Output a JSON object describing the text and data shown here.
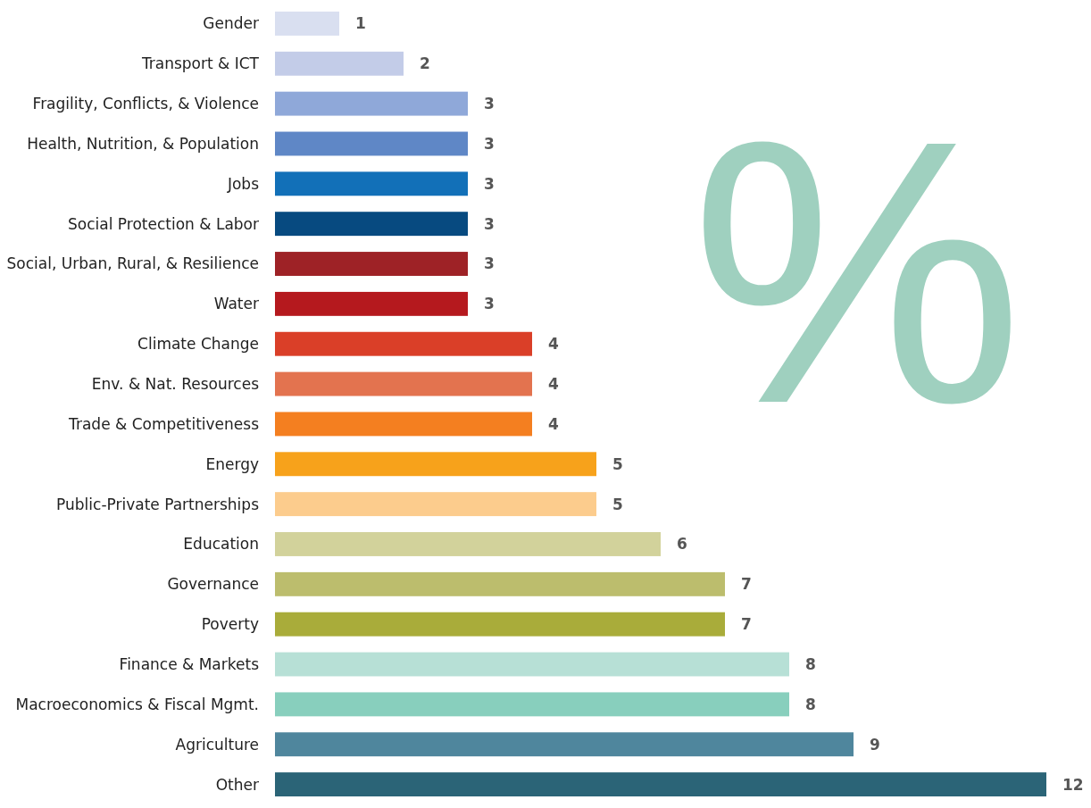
{
  "chart_data": {
    "type": "bar",
    "orientation": "horizontal",
    "data_labels": true,
    "categories": [
      "Gender",
      "Transport & ICT",
      "Fragility, Conflicts, & Violence",
      "Health, Nutrition, & Population",
      "Jobs",
      "Social Protection & Labor",
      "Social, Urban, Rural, & Resilience",
      "Water",
      "Climate Change",
      "Env. & Nat. Resources",
      "Trade & Competitiveness",
      "Energy",
      "Public-Private Partnerships",
      "Education",
      "Governance",
      "Poverty",
      "Finance & Markets",
      "Macroeconomics & Fiscal Mgmt.",
      "Agriculture",
      "Other"
    ],
    "values": [
      1,
      2,
      3,
      3,
      3,
      3,
      3,
      3,
      4,
      4,
      4,
      5,
      5,
      6,
      7,
      7,
      8,
      8,
      9,
      12
    ],
    "colors": [
      "#d9dff0",
      "#c3cce8",
      "#8fa8d9",
      "#5f87c6",
      "#1270b8",
      "#074a80",
      "#9e2226",
      "#b5191e",
      "#da3f28",
      "#e3734f",
      "#f47f20",
      "#f7a21b",
      "#fccc8d",
      "#d2d29b",
      "#bcbd6d",
      "#a9ac3a",
      "#b7e0d6",
      "#88cfbd",
      "#4f869d",
      "#2b6477"
    ],
    "annotations": [
      "%"
    ]
  }
}
